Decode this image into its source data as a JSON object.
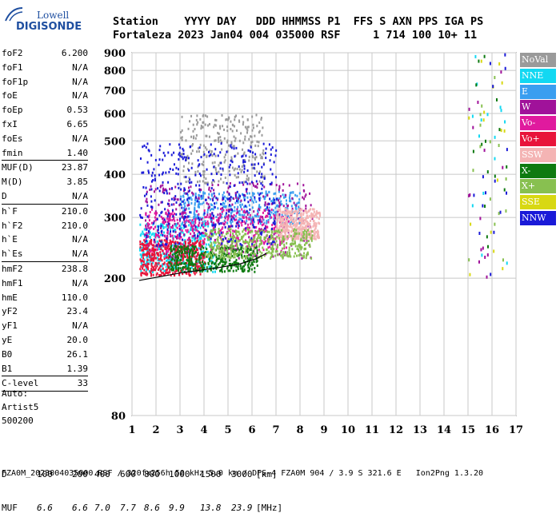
{
  "logo": {
    "line1": "Lowell",
    "line2": "DIGISONDE"
  },
  "header": {
    "line1": "Station    YYYY DAY   DDD HHMMSS P1  FFS S AXN PPS IGA PS",
    "line2": "Fortaleza 2023 Jan04 004 035000 RSF     1 714 100 10+ 11"
  },
  "params": [
    {
      "name": "foF2",
      "value": "6.200"
    },
    {
      "name": "foF1",
      "value": "N/A"
    },
    {
      "name": "foF1p",
      "value": "N/A"
    },
    {
      "name": "foE",
      "value": "N/A"
    },
    {
      "name": "foEp",
      "value": "0.53"
    },
    {
      "name": "fxI",
      "value": "6.65"
    },
    {
      "name": "foEs",
      "value": "N/A"
    },
    {
      "name": "fmin",
      "value": "1.40"
    },
    {
      "name": "MUF(D)",
      "value": "23.87"
    },
    {
      "name": "M(D)",
      "value": "3.85"
    },
    {
      "name": "D",
      "value": "N/A"
    },
    {
      "name": "h`F",
      "value": "210.0"
    },
    {
      "name": "h`F2",
      "value": "210.0"
    },
    {
      "name": "h`E",
      "value": "N/A"
    },
    {
      "name": "h`Es",
      "value": "N/A"
    },
    {
      "name": "hmF2",
      "value": "238.8"
    },
    {
      "name": "hmF1",
      "value": "N/A"
    },
    {
      "name": "hmE",
      "value": "110.0"
    },
    {
      "name": "yF2",
      "value": "23.4"
    },
    {
      "name": "yF1",
      "value": "N/A"
    },
    {
      "name": "yE",
      "value": "20.0"
    },
    {
      "name": "B0",
      "value": "26.1"
    },
    {
      "name": "B1",
      "value": "1.39"
    }
  ],
  "clevel": {
    "name": "C-level",
    "value": "33"
  },
  "auto": {
    "line1": "Auto:",
    "line2": "Artist5",
    "line3": "500200"
  },
  "legend": [
    {
      "label": "NoVal",
      "color": "#9a9a9a"
    },
    {
      "label": "NNE",
      "color": "#12d8f2"
    },
    {
      "label": "E",
      "color": "#3a9ef0"
    },
    {
      "label": "W",
      "color": "#a0129a"
    },
    {
      "label": "Vo-",
      "color": "#e01a9e"
    },
    {
      "label": "Vo+",
      "color": "#e8143a"
    },
    {
      "label": "SSW",
      "color": "#f4b4b4"
    },
    {
      "label": "X-",
      "color": "#0e7a10"
    },
    {
      "label": "X+",
      "color": "#88c050"
    },
    {
      "label": "SSE",
      "color": "#d8d812"
    },
    {
      "label": "NNW",
      "color": "#1a1ad8"
    }
  ],
  "chart_data": {
    "type": "scatter",
    "xlabel": "",
    "ylabel": "",
    "xlim": [
      1,
      17
    ],
    "ylim": [
      80,
      900
    ],
    "x_ticks": [
      1,
      2,
      3,
      4,
      5,
      6,
      7,
      8,
      9,
      10,
      11,
      12,
      13,
      14,
      15,
      16,
      17
    ],
    "y_ticks": [
      80,
      200,
      300,
      400,
      500,
      600,
      700,
      800,
      900
    ],
    "grid": true,
    "scale_y": "log",
    "profile_line": {
      "x": [
        1.3,
        3.0,
        4.5,
        5.5,
        6.2,
        6.6
      ],
      "y": [
        197,
        207,
        214,
        220,
        228,
        236
      ]
    },
    "echo_regions": [
      {
        "mode": "NNE",
        "x": [
          1.3,
          4.5
        ],
        "y": [
          210,
          290
        ]
      },
      {
        "mode": "E",
        "x": [
          3.0,
          8.0
        ],
        "y": [
          290,
          360
        ]
      },
      {
        "mode": "W",
        "x": [
          1.5,
          8.5
        ],
        "y": [
          230,
          380
        ]
      },
      {
        "mode": "Vo-",
        "x": [
          1.5,
          7.5
        ],
        "y": [
          240,
          320
        ]
      },
      {
        "mode": "Vo+",
        "x": [
          1.3,
          4.0
        ],
        "y": [
          205,
          260
        ]
      },
      {
        "mode": "SSW",
        "x": [
          7.0,
          8.8
        ],
        "y": [
          260,
          320
        ]
      },
      {
        "mode": "X-",
        "x": [
          2.5,
          6.2
        ],
        "y": [
          210,
          250
        ]
      },
      {
        "mode": "X+",
        "x": [
          4.0,
          8.5
        ],
        "y": [
          230,
          280
        ]
      },
      {
        "mode": "NoVal",
        "x": [
          3.0,
          6.5
        ],
        "y": [
          380,
          600
        ]
      },
      {
        "mode": "NNW",
        "x": [
          1.3,
          7.0
        ],
        "y": [
          250,
          500
        ]
      }
    ]
  },
  "bottom": {
    "d_label": "D",
    "d_values": [
      "100",
      "200",
      "400",
      "600",
      "800",
      "1000",
      "1500",
      "3000",
      "[km]"
    ],
    "muf_label": "MUF",
    "muf_values": [
      "6.6",
      "6.6",
      "7.0",
      "7.7",
      "8.6",
      "9.9",
      "13.8",
      "23.9",
      "[MHz]"
    ]
  },
  "footer": "FZA0M_2023004035000.RSF / 320fx256h 50 kHz 5.0 km / DPS-4 FZA0M 904 / 3.9 S 321.6 E   Ion2Png 1.3.20"
}
